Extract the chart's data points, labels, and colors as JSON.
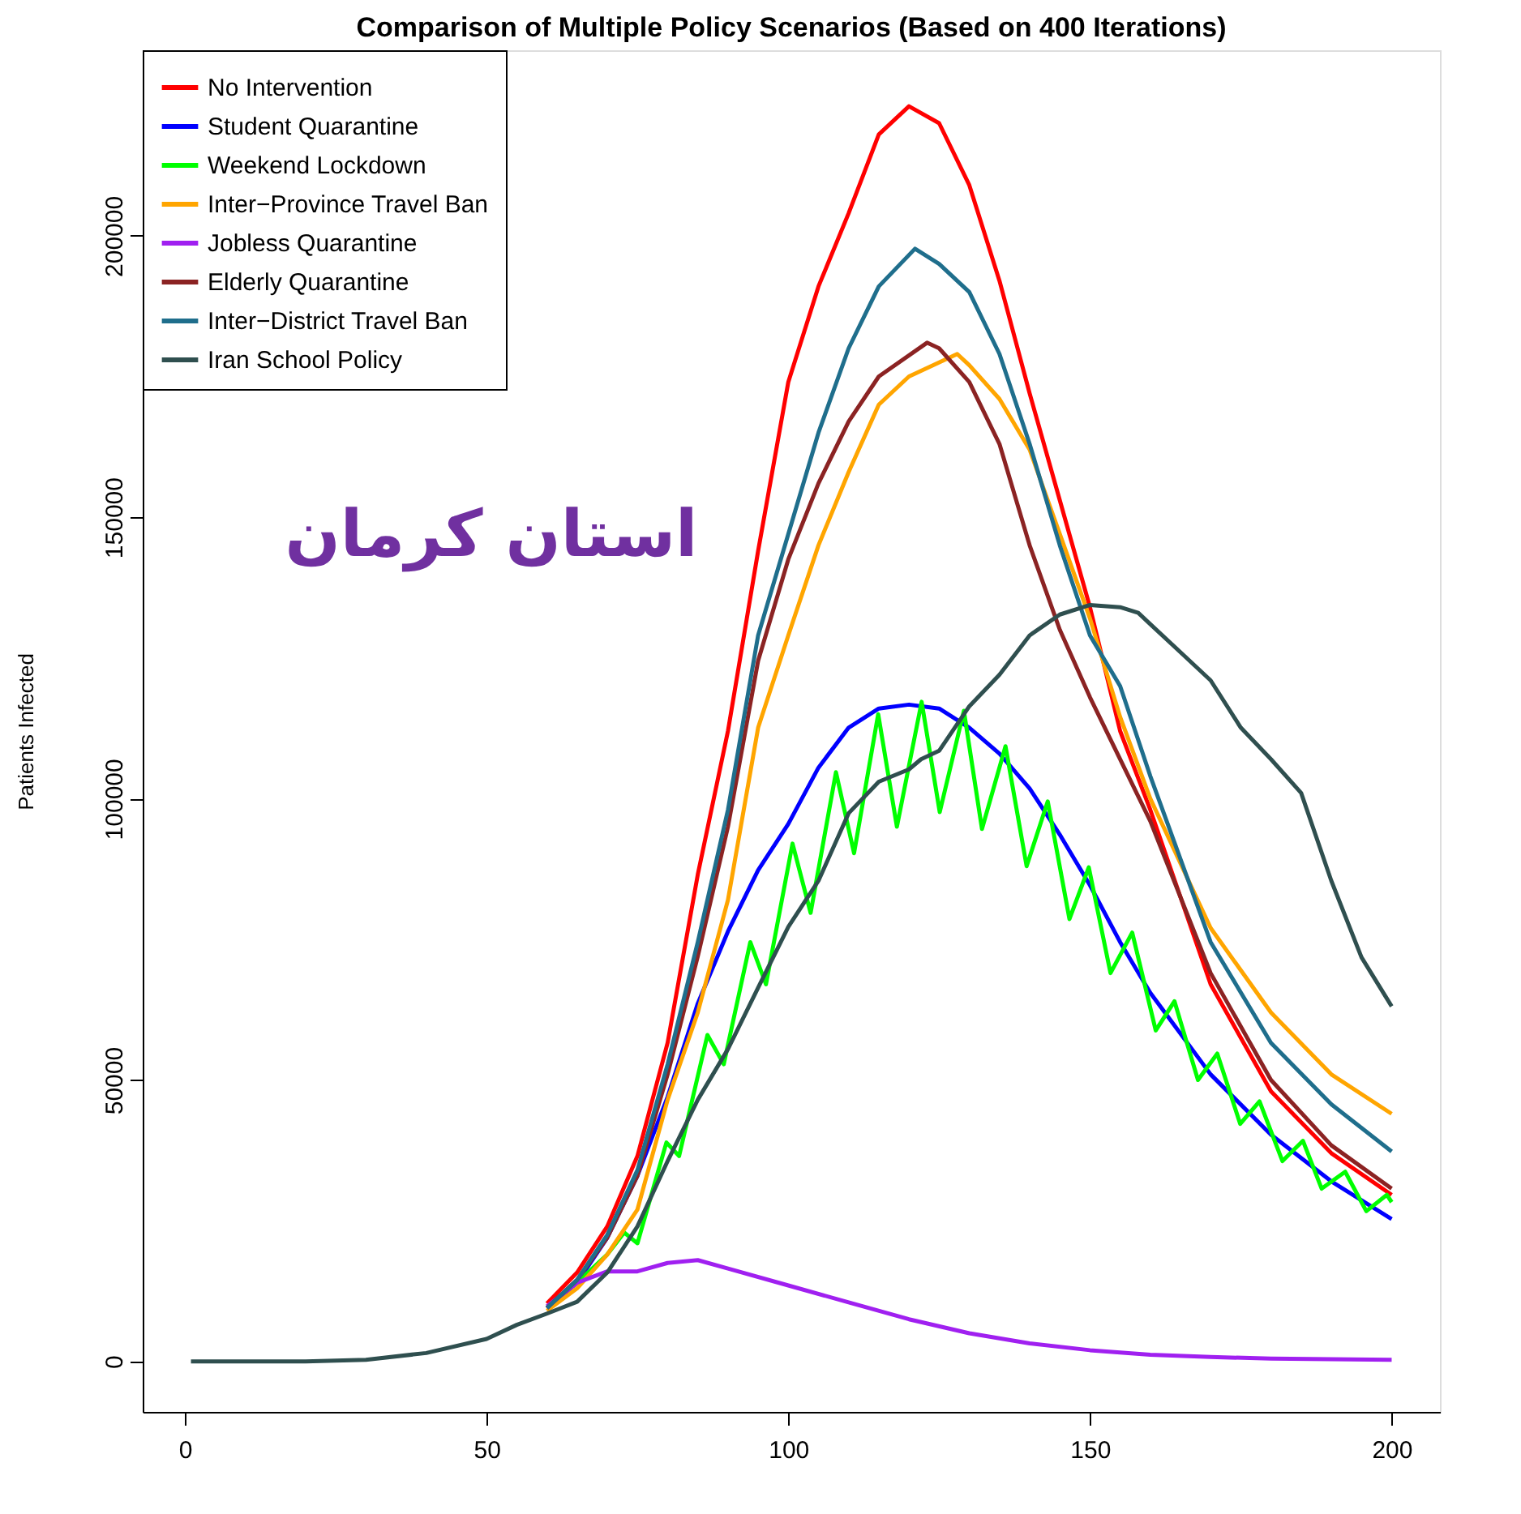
{
  "chart_data": {
    "type": "line",
    "title": "Comparison of Multiple Policy Scenarios (Based on 400 Iterations)",
    "ylabel": "Patients Infected",
    "annotations": [
      "استان کرمان"
    ],
    "xlim": [
      -7,
      208
    ],
    "ylim": [
      -8960,
      232960
    ],
    "xticks": [
      0,
      50,
      100,
      150,
      200
    ],
    "yticks": [
      0,
      50000,
      100000,
      150000,
      200000
    ],
    "grid": false,
    "legend": "top left",
    "marker": "none",
    "line_style": "solid",
    "series": [
      {
        "name": "No Intervention",
        "color": "#ff0000",
        "x": [
          60,
          65,
          70,
          75,
          80,
          85,
          90,
          95,
          100,
          105,
          110,
          115,
          120,
          125,
          130,
          135,
          140,
          145,
          150,
          155,
          160,
          170,
          180,
          190,
          200
        ],
        "values": [
          10300,
          15800,
          24000,
          36500,
          56600,
          86500,
          112000,
          144000,
          174000,
          191000,
          204000,
          218000,
          223000,
          220000,
          209000,
          192000,
          172000,
          153000,
          134000,
          112000,
          98000,
          67000,
          48000,
          37000,
          29600
        ]
      },
      {
        "name": "Student Quarantine",
        "color": "#0000ff",
        "x": [
          60,
          65,
          70,
          75,
          80,
          85,
          90,
          95,
          100,
          105,
          110,
          115,
          120,
          125,
          130,
          135,
          140,
          145,
          150,
          155,
          160,
          170,
          180,
          190,
          200
        ],
        "values": [
          9500,
          14000,
          22000,
          33000,
          47000,
          63600,
          76400,
          87300,
          95500,
          105500,
          112600,
          116000,
          116700,
          116000,
          112600,
          108000,
          101800,
          93600,
          84600,
          74500,
          65500,
          51000,
          40300,
          32000,
          25300
        ]
      },
      {
        "name": "Weekend Lockdown",
        "color": "#00ff00",
        "x": [
          65,
          70,
          72.8,
          75,
          79.8,
          81.9,
          86.6,
          89.3,
          93.7,
          96.3,
          100.7,
          103.7,
          107.9,
          110.9,
          114.9,
          118,
          122.1,
          125.1,
          129.1,
          132.1,
          136,
          139.5,
          143,
          146.6,
          149.8,
          153.4,
          157,
          160.9,
          164,
          167.9,
          171.1,
          174.9,
          178.1,
          181.9,
          185.3,
          188.4,
          192.3,
          195.8,
          199.2,
          200
        ],
        "values": [
          14000,
          19000,
          22900,
          21000,
          38900,
          36500,
          58000,
          52800,
          74500,
          67000,
          92000,
          79700,
          104700,
          90300,
          115000,
          95000,
          117200,
          97600,
          115600,
          94600,
          109300,
          88000,
          99500,
          78600,
          87800,
          69000,
          76200,
          58800,
          64000,
          50000,
          54700,
          42200,
          46200,
          35600,
          39200,
          30700,
          33700,
          26700,
          29600,
          28300
        ]
      },
      {
        "name": "Inter−Province Travel Ban",
        "color": "#ffa500",
        "x": [
          60,
          65,
          70,
          75,
          80,
          85,
          90,
          95,
          100,
          105,
          110,
          115,
          120,
          128,
          130,
          135,
          140,
          145,
          150,
          155,
          160,
          170,
          180,
          190,
          200
        ],
        "values": [
          9000,
          13000,
          19000,
          27000,
          46500,
          62000,
          82000,
          112600,
          129000,
          145000,
          158000,
          170000,
          175000,
          179000,
          177000,
          171000,
          162000,
          147000,
          132000,
          114500,
          100000,
          77000,
          62000,
          51000,
          44000
        ]
      },
      {
        "name": "Jobless Quarantine",
        "color": "#a020f0",
        "x": [
          60,
          65,
          70,
          75,
          80,
          85,
          90,
          100,
          110,
          120,
          130,
          140,
          150,
          160,
          170,
          180,
          200
        ],
        "values": [
          9800,
          14000,
          16000,
          16000,
          17500,
          18000,
          16500,
          13500,
          10500,
          7500,
          5000,
          3200,
          2000,
          1200,
          800,
          500,
          300
        ]
      },
      {
        "name": "Elderly Quarantine",
        "color": "#8b2323",
        "x": [
          60,
          65,
          70,
          75,
          80,
          85,
          90,
          95,
          100,
          105,
          110,
          115,
          123,
          125,
          130,
          135,
          140,
          145,
          150,
          160,
          170,
          180,
          190,
          200
        ],
        "values": [
          9500,
          14500,
          22000,
          33000,
          51000,
          72000,
          95000,
          124500,
          142500,
          156000,
          167000,
          175000,
          181000,
          180000,
          174000,
          163000,
          145000,
          130000,
          118000,
          96000,
          69000,
          50000,
          38400,
          30700
        ]
      },
      {
        "name": "Inter−District Travel Ban",
        "color": "#1f6e8c",
        "x": [
          60,
          65,
          70,
          75,
          80,
          85,
          90,
          95,
          100,
          105,
          110,
          115,
          121,
          125,
          130,
          135,
          140,
          145,
          150,
          155,
          160,
          170,
          180,
          190,
          200
        ],
        "values": [
          9500,
          14500,
          22500,
          34000,
          52800,
          74500,
          98000,
          129000,
          147000,
          165000,
          180000,
          191000,
          197700,
          195000,
          190000,
          179000,
          163000,
          145000,
          129000,
          120000,
          104000,
          74500,
          56600,
          45700,
          37300
        ]
      },
      {
        "name": "Iran School Policy",
        "color": "#2f4f4f",
        "x": [
          1,
          20,
          30,
          40,
          50,
          55,
          60,
          65,
          70,
          75,
          80,
          85,
          90,
          95,
          100,
          105,
          110,
          115,
          120,
          122,
          125,
          130,
          135,
          140,
          145,
          150,
          155,
          158,
          160,
          165,
          170,
          175,
          180,
          185,
          190,
          195,
          200
        ],
        "values": [
          0,
          0,
          300,
          1500,
          4000,
          6500,
          8500,
          10600,
          15800,
          24000,
          35600,
          46500,
          55500,
          66400,
          77200,
          85400,
          97400,
          103000,
          105200,
          107000,
          108500,
          116400,
          122000,
          129000,
          132700,
          134400,
          134000,
          133000,
          131000,
          126000,
          121000,
          112600,
          107000,
          101000,
          85400,
          71800,
          63100
        ]
      }
    ]
  }
}
